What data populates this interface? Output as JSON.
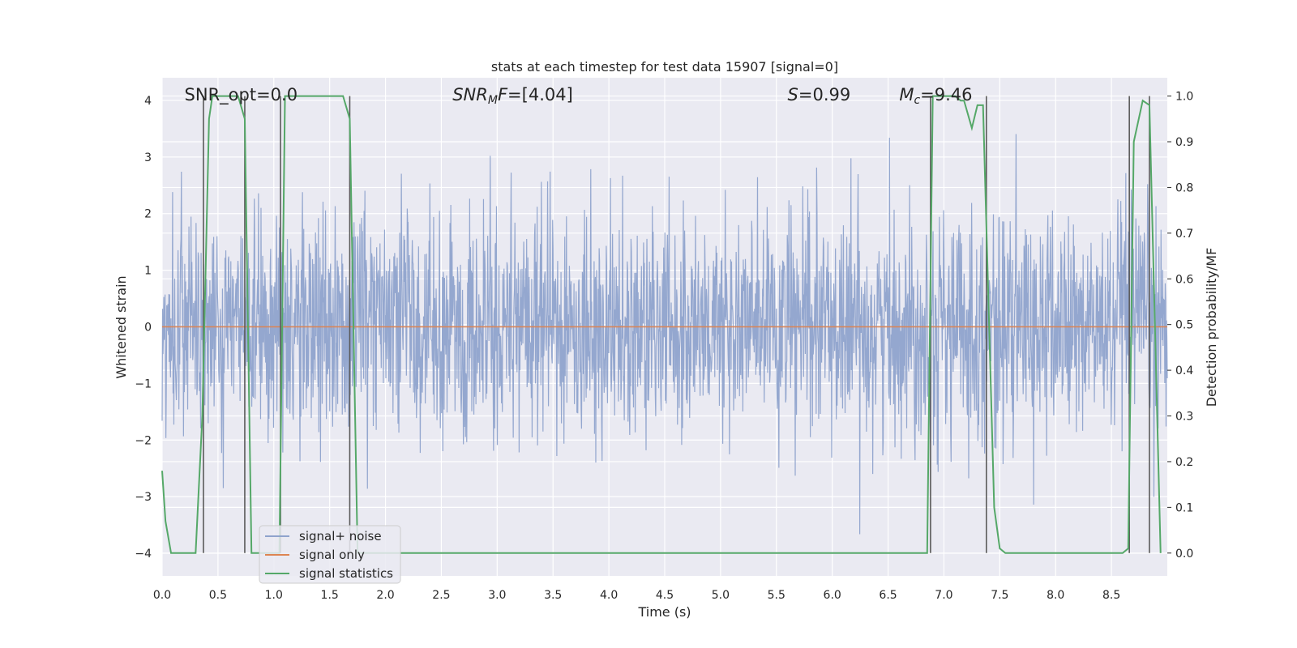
{
  "chart_data": {
    "type": "line",
    "title": "stats at each timestep for test data 15907 [signal=0]",
    "xlabel": "Time (s)",
    "ylabel": "Whitened strain",
    "ylabel_right": "Detection probability/MF",
    "xlim": [
      0,
      9.0
    ],
    "ylim": [
      -4.4,
      4.4
    ],
    "ylim_right": [
      -0.05,
      1.04
    ],
    "grid": true,
    "x_ticks": [
      "0.0",
      "0.5",
      "1.0",
      "1.5",
      "2.0",
      "2.5",
      "3.0",
      "3.5",
      "4.0",
      "4.5",
      "5.0",
      "5.5",
      "6.0",
      "6.5",
      "7.0",
      "7.5",
      "8.0",
      "8.5"
    ],
    "x_tick_values": [
      0,
      0.5,
      1.0,
      1.5,
      2.0,
      2.5,
      3.0,
      3.5,
      4.0,
      4.5,
      5.0,
      5.5,
      6.0,
      6.5,
      7.0,
      7.5,
      8.0,
      8.5
    ],
    "y_ticks": [
      "−4",
      "−3",
      "−2",
      "−1",
      "0",
      "1",
      "2",
      "3",
      "4"
    ],
    "y_tick_values": [
      -4,
      -3,
      -2,
      -1,
      0,
      1,
      2,
      3,
      4
    ],
    "y_ticks_right": [
      "0.0",
      "0.1",
      "0.2",
      "0.3",
      "0.4",
      "0.5",
      "0.6",
      "0.7",
      "0.8",
      "0.9",
      "1.0"
    ],
    "y_tick_values_right": [
      0,
      0.1,
      0.2,
      0.3,
      0.4,
      0.5,
      0.6,
      0.7,
      0.8,
      0.9,
      1.0
    ],
    "annotations": [
      {
        "text": "SNR_opt=0.0",
        "x": 0.2
      },
      {
        "text": "SNR_MF=[4.04]",
        "x": 2.6
      },
      {
        "text": "S=0.99",
        "x": 5.6
      },
      {
        "text": "M_c=9.46",
        "x": 6.6
      }
    ],
    "legend": {
      "position": "lower-left",
      "entries": [
        "signal+ noise",
        "signal only",
        "signal statistics"
      ]
    },
    "series": [
      {
        "name": "signal+ noise",
        "color": "#8fa3cc",
        "amplitude_typical": 1.5,
        "amplitude_max": 4.0
      },
      {
        "name": "signal only",
        "color": "#dd8452",
        "value": 0
      },
      {
        "name": "signal statistics",
        "color": "#55a868",
        "axis": "right",
        "x": [
          0.0,
          0.03,
          0.08,
          0.15,
          0.3,
          0.36,
          0.42,
          0.45,
          0.55,
          0.68,
          0.74,
          0.8,
          1.05,
          1.1,
          1.2,
          1.62,
          1.68,
          1.75,
          6.85,
          6.9,
          6.95,
          7.1,
          7.15,
          7.18,
          7.25,
          7.3,
          7.35,
          7.45,
          7.5,
          7.55,
          8.6,
          8.65,
          8.7,
          8.78,
          8.84,
          8.94
        ],
        "y": [
          0.18,
          0.07,
          0.0,
          0.0,
          0.0,
          0.3,
          0.95,
          1.0,
          1.0,
          1.0,
          0.95,
          0.0,
          0.0,
          1.0,
          1.0,
          1.0,
          0.95,
          0.0,
          0.0,
          1.0,
          1.0,
          1.0,
          0.99,
          0.99,
          0.93,
          0.98,
          0.98,
          0.1,
          0.01,
          0.0,
          0.0,
          0.01,
          0.9,
          0.99,
          0.98,
          0.0
        ]
      },
      {
        "name": "",
        "color": "#5a5a5a",
        "type": "vlines",
        "x": [
          0.37,
          0.74,
          1.06,
          1.68,
          6.88,
          7.38,
          8.66,
          8.84
        ]
      }
    ]
  }
}
